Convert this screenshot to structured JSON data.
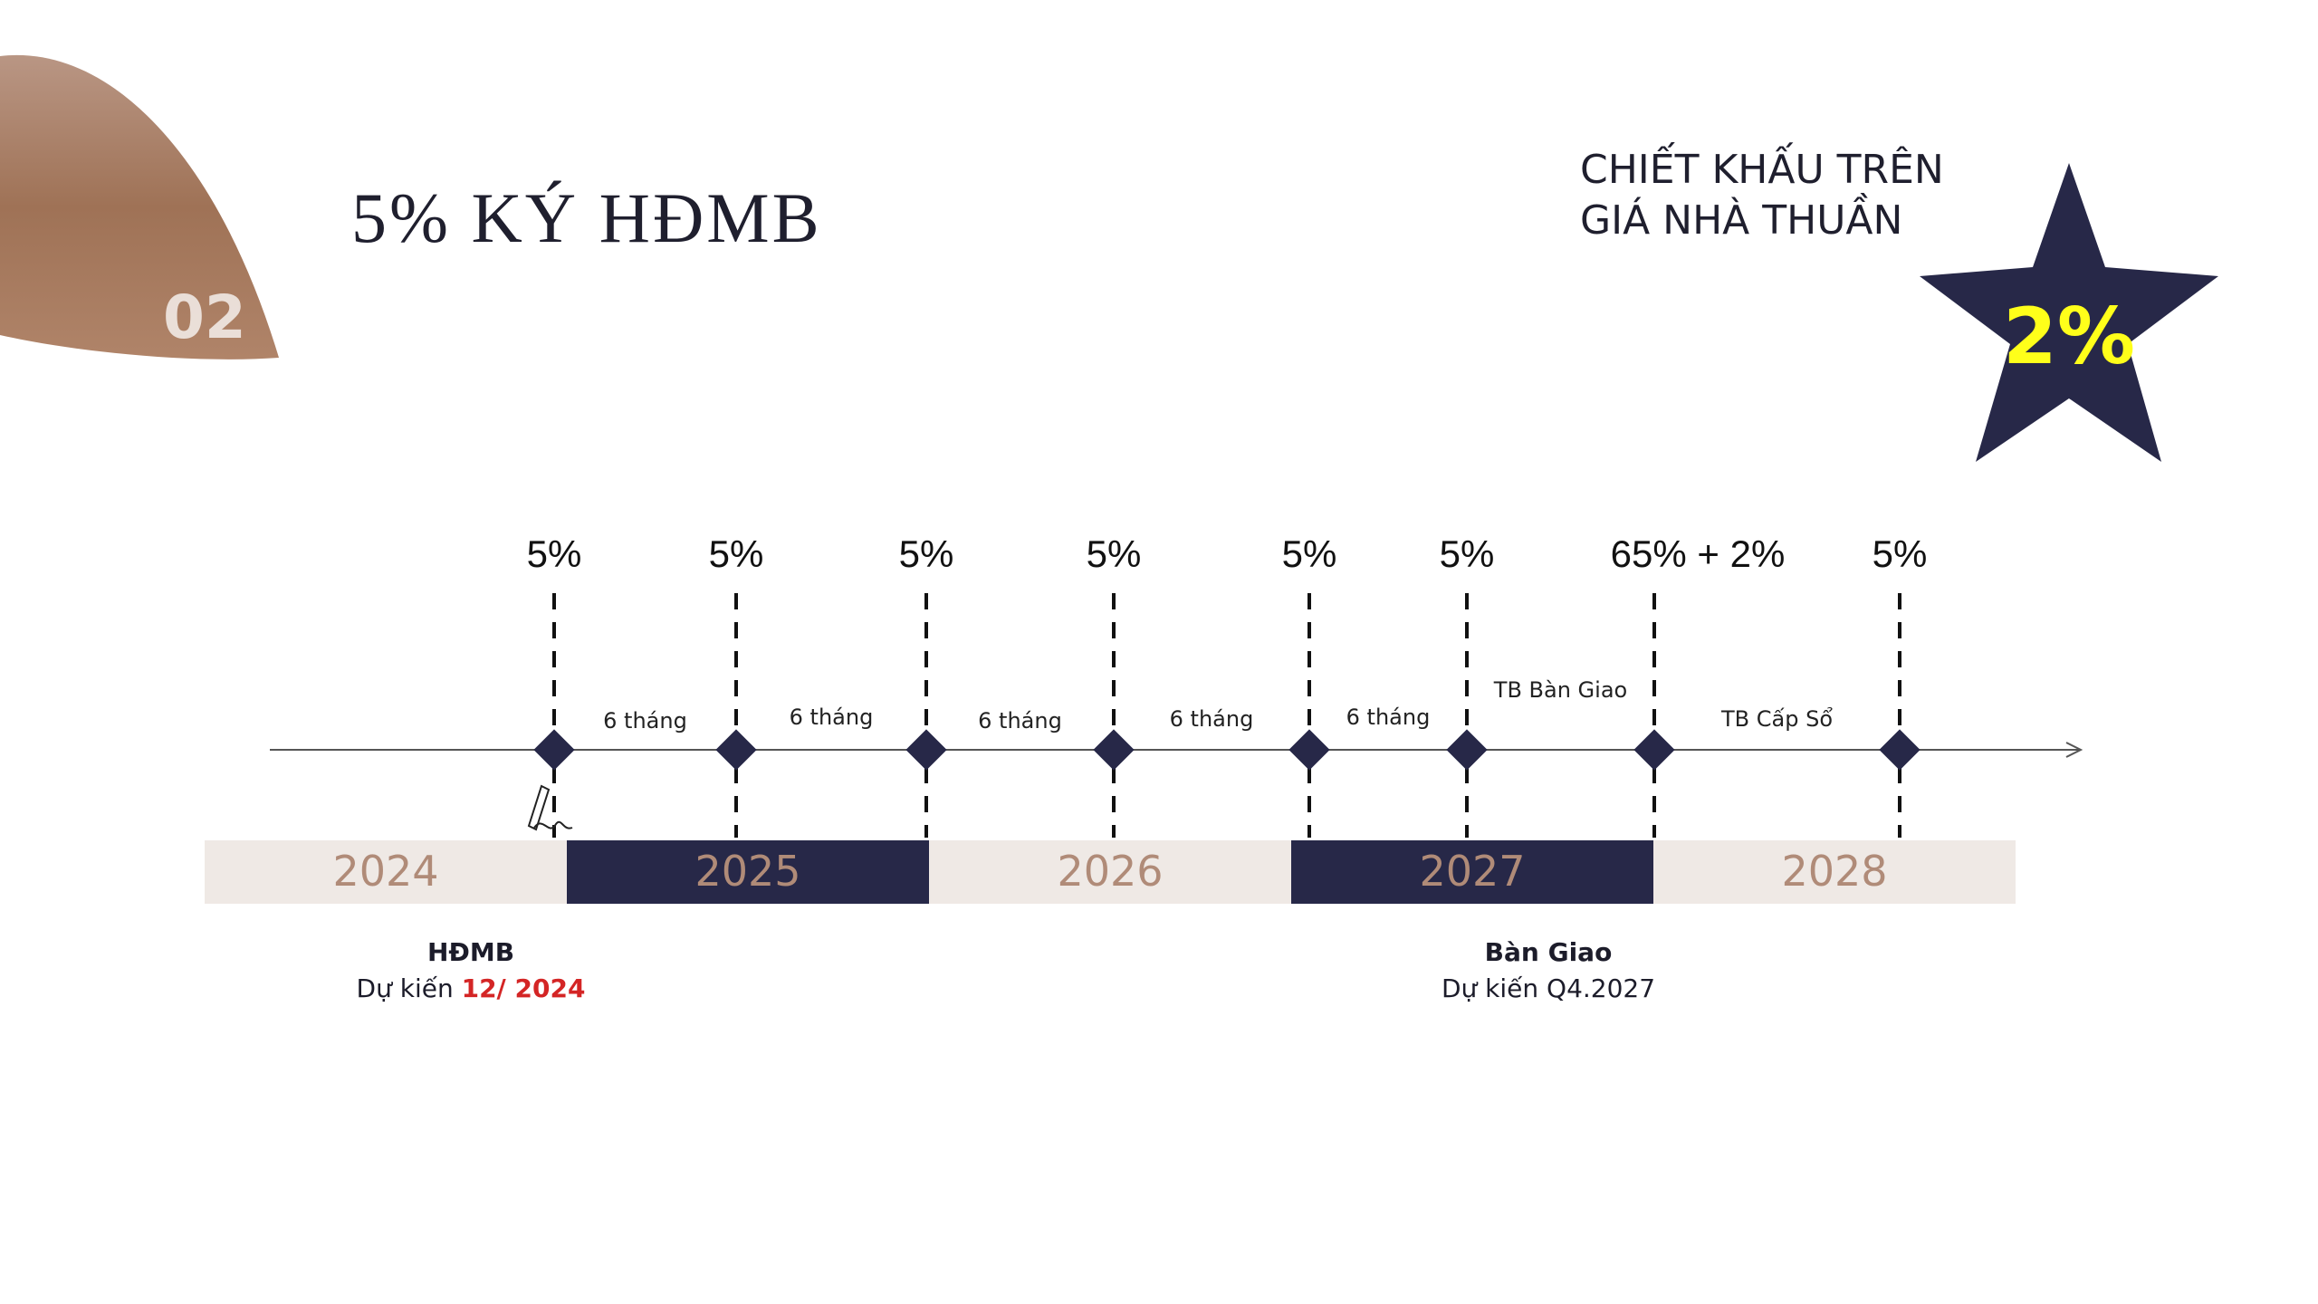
{
  "slide": {
    "badge_number": "02",
    "title": "5% KÝ HĐMB"
  },
  "discount": {
    "title_line1": "CHIẾT KHẤU TRÊN",
    "title_line2": "GIÁ NHÀ THUẦN",
    "value": "2%"
  },
  "timeline": {
    "milestones": [
      {
        "payment": "5%"
      },
      {
        "payment": "5%"
      },
      {
        "payment": "5%"
      },
      {
        "payment": "5%"
      },
      {
        "payment": "5%"
      },
      {
        "payment": "5%"
      },
      {
        "payment": "65% + 2%"
      },
      {
        "payment": "5%"
      }
    ],
    "intervals": [
      {
        "label": "6 tháng"
      },
      {
        "label": "6 tháng"
      },
      {
        "label": "6 tháng"
      },
      {
        "label": "6 tháng"
      },
      {
        "label": "6 tháng"
      },
      {
        "label": "TB Bàn Giao"
      },
      {
        "label": "TB Cấp Sổ"
      }
    ],
    "years": [
      {
        "label": "2024",
        "highlighted": false
      },
      {
        "label": "2025",
        "highlighted": true
      },
      {
        "label": "2026",
        "highlighted": false
      },
      {
        "label": "2027",
        "highlighted": true
      },
      {
        "label": "2028",
        "highlighted": false
      }
    ]
  },
  "notes": {
    "hdmb": {
      "title": "HĐMB",
      "prefix": "Dự kiến ",
      "date": "12/ 2024"
    },
    "ban_giao": {
      "title": "Bàn Giao",
      "text": "Dự kiến Q4.2027"
    }
  },
  "colors": {
    "navy": "#272848",
    "beige": "#efe9e5",
    "year_text": "#b08b78",
    "brand_brown": "#a9806a",
    "star_value": "#ffff1a",
    "accent_red": "#d42525"
  }
}
